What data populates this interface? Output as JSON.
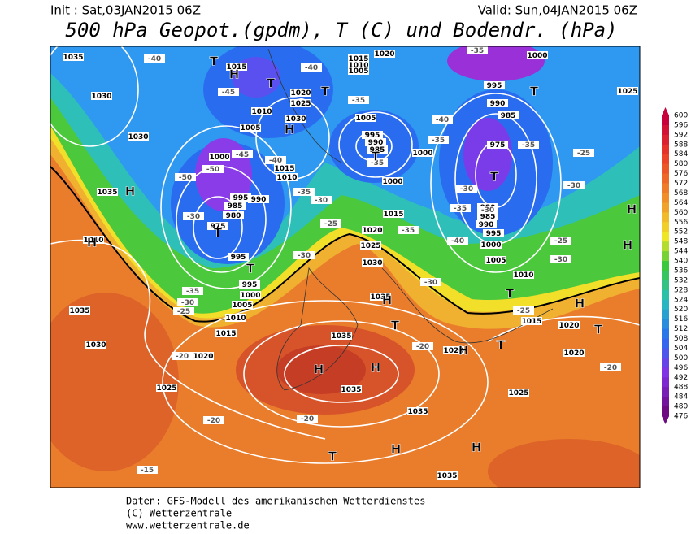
{
  "header": {
    "init": "Init : Sat,03JAN2015 06Z",
    "valid": "Valid: Sun,04JAN2015 06Z",
    "title": "500 hPa Geopot.(gpdm), T (C) und Bodendr. (hPa)"
  },
  "colorbar": {
    "labels": [
      600,
      596,
      592,
      588,
      584,
      580,
      576,
      572,
      568,
      564,
      560,
      556,
      552,
      548,
      544,
      540,
      536,
      532,
      528,
      524,
      520,
      516,
      512,
      508,
      504,
      500,
      496,
      492,
      488,
      484,
      480,
      476
    ]
  },
  "map": {
    "isobar_labels": [
      1035,
      1030,
      1030,
      1035,
      1010,
      1035,
      1030,
      1025,
      1020,
      1015,
      1010,
      1005,
      1000,
      995,
      995,
      975,
      980,
      985,
      990,
      995,
      1000,
      1005,
      1010,
      1015,
      1020,
      1025,
      1030,
      1015,
      1010,
      1005,
      995,
      990,
      985,
      1000,
      1015,
      1020,
      1025,
      1030,
      1035,
      1035,
      1035,
      1035,
      1035,
      1025,
      1020,
      1020,
      1020,
      1015,
      1010,
      1005,
      1000,
      995,
      990,
      985,
      980,
      975,
      985,
      990,
      995,
      1000,
      1025,
      1020,
      1015,
      1010,
      1005,
      1000
    ],
    "temperature_labels": [
      -40,
      -45,
      -40,
      -35,
      -40,
      -35,
      -35,
      -25,
      -30,
      -30,
      -35,
      -40,
      -35,
      -35,
      -30,
      -25,
      -30,
      -35,
      -30,
      -25,
      -45,
      -40,
      -50,
      -50,
      -30,
      -35,
      -30,
      -25,
      -25,
      -30,
      -20,
      -20,
      -20,
      -20,
      -20,
      -15,
      -35,
      -30
    ],
    "pressure_centers": [
      "H",
      "H",
      "H",
      "H",
      "H",
      "H",
      "H",
      "H",
      "H",
      "H",
      "H",
      "H",
      "H",
      "T",
      "T",
      "T",
      "T",
      "T",
      "T",
      "T",
      "T",
      "T",
      "T",
      "T",
      "T",
      "T"
    ]
  },
  "footer": {
    "lines": [
      "Daten: GFS-Modell des amerikanischen Wetterdienstes",
      "(C) Wetterzentrale",
      "www.wetterzentrale.de"
    ]
  }
}
